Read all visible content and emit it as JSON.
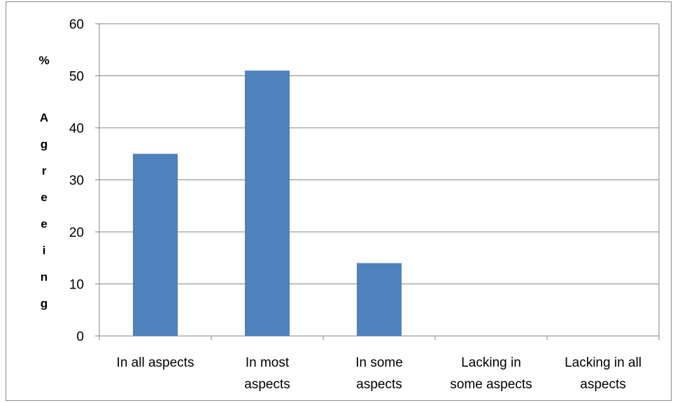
{
  "chart_data": {
    "type": "bar",
    "categories": [
      [
        "In all aspects"
      ],
      [
        "In most",
        "aspects"
      ],
      [
        "In some",
        "aspects"
      ],
      [
        "Lacking in",
        "some aspects"
      ],
      [
        "Lacking in all",
        "aspects"
      ]
    ],
    "values": [
      35,
      51,
      14,
      0,
      0
    ],
    "ylabel": [
      "%",
      "A",
      "g",
      "r",
      "e",
      "e",
      "i",
      "n",
      "g"
    ],
    "ylim": [
      0,
      60
    ],
    "yticks": [
      0,
      10,
      20,
      30,
      40,
      50,
      60
    ],
    "grid": true,
    "legend": "none",
    "colors": {
      "bar": "#4f81bd",
      "grid": "#868686",
      "axis": "#868686"
    }
  }
}
